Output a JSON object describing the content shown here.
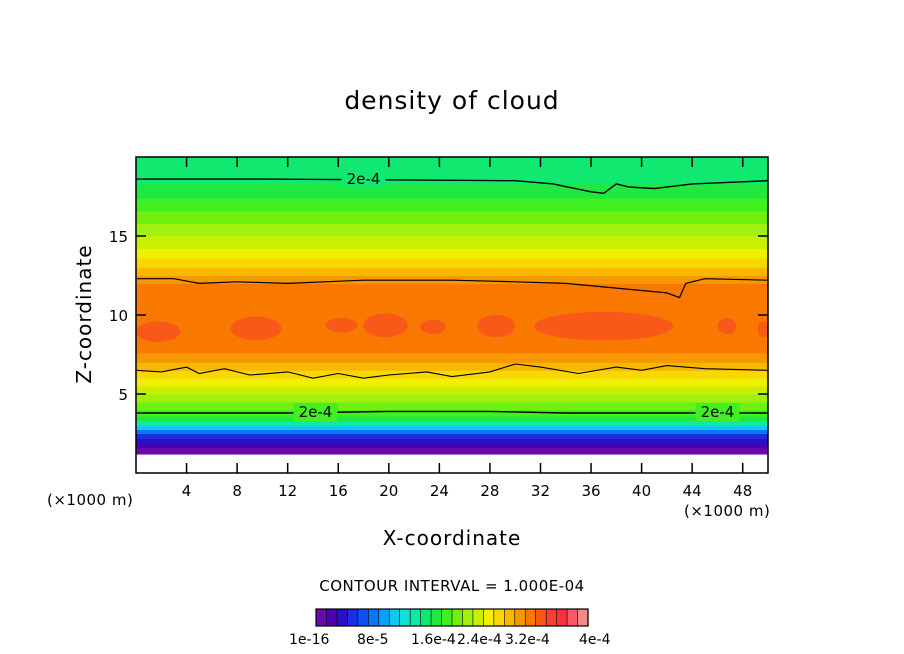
{
  "chart_data": {
    "type": "heatmap",
    "title": "density of cloud",
    "xlabel": "X-coordinate",
    "ylabel": "Z-coordinate",
    "x_unit": "(×1000 m)",
    "y_unit": "(×1000 m)",
    "xlim": [
      0,
      50
    ],
    "ylim": [
      0,
      20
    ],
    "x_ticks": [
      4,
      8,
      12,
      16,
      20,
      24,
      28,
      32,
      36,
      40,
      44,
      48
    ],
    "y_ticks": [
      5,
      10,
      15
    ],
    "contour_interval_text": "CONTOUR INTERVAL = 1.000E-04",
    "contour_label": "2e-4",
    "colorbar_labels": [
      "1e-16",
      "8e-5",
      "1.6e-4",
      "2.4e-4",
      "3.2e-4",
      "4e-4"
    ],
    "colorbar_colors": [
      "#6a0aa8",
      "#4a00b0",
      "#2a10c8",
      "#1a30e0",
      "#1050f0",
      "#0878f8",
      "#08a0f8",
      "#10c8f0",
      "#10e0d8",
      "#10e8a8",
      "#10e870",
      "#20e840",
      "#40f020",
      "#70f010",
      "#a0f010",
      "#c8f000",
      "#f0f000",
      "#f8d800",
      "#f8b800",
      "#f89800",
      "#f87800",
      "#f85818",
      "#f84030",
      "#f83040",
      "#f85868",
      "#f88888"
    ],
    "grid": false,
    "legend": "bottom colorbar"
  }
}
